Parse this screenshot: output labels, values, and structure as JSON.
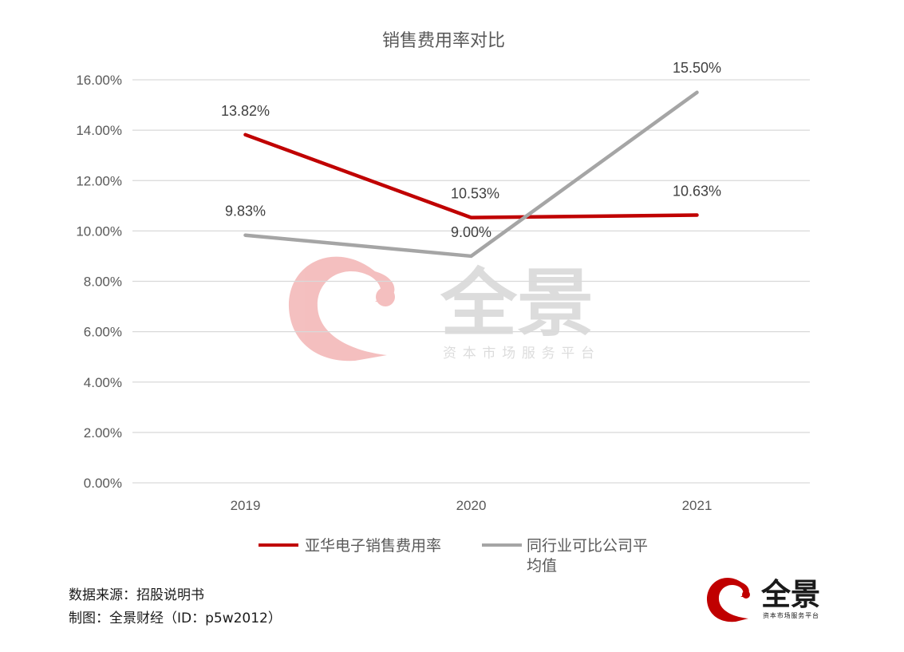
{
  "chart_data": {
    "type": "line",
    "title": "销售费用率对比",
    "categories": [
      "2019",
      "2020",
      "2021"
    ],
    "ylim": [
      0,
      16
    ],
    "yticks": [
      "0.00%",
      "2.00%",
      "4.00%",
      "6.00%",
      "8.00%",
      "10.00%",
      "12.00%",
      "14.00%",
      "16.00%"
    ],
    "ytick_values": [
      0,
      2,
      4,
      6,
      8,
      10,
      12,
      14,
      16
    ],
    "grid": true,
    "legend_position": "bottom",
    "series": [
      {
        "name": "亚华电子销售费用率",
        "values": [
          13.82,
          10.53,
          10.63
        ],
        "labels": [
          "13.82%",
          "10.53%",
          "10.63%"
        ],
        "color": "#c00000"
      },
      {
        "name": "同行业可比公司平均值",
        "legend_lines": [
          "同行业可比公司平",
          "均值"
        ],
        "values": [
          9.83,
          9.0,
          15.5
        ],
        "labels": [
          "9.83%",
          "9.00%",
          "15.50%"
        ],
        "color": "#a5a5a5"
      }
    ]
  },
  "watermark": {
    "brand": "全景",
    "tagline": "资本市场服务平台",
    "logo_color": "#e04b4b"
  },
  "footer": {
    "source": "数据来源：招股说明书",
    "credit": "制图：全景财经（ID：p5w2012）"
  },
  "logo": {
    "brand": "全景",
    "tagline": "资本市场服务平台",
    "color": "#c00000"
  }
}
